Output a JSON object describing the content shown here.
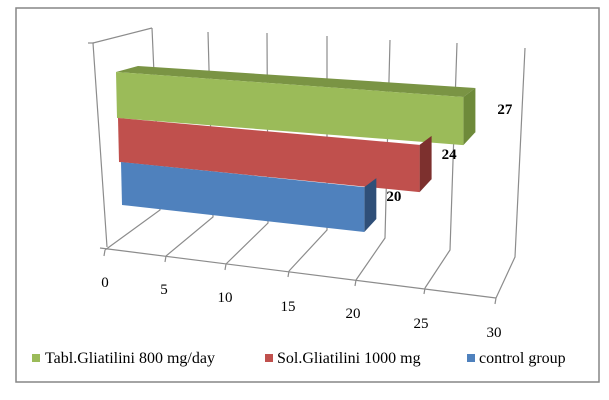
{
  "chart_data": {
    "type": "bar",
    "orientation": "horizontal-3d",
    "title": "",
    "xlabel": "",
    "ylabel": "",
    "xlim": [
      0,
      30
    ],
    "x_ticks": [
      "0",
      "5",
      "10",
      "15",
      "20",
      "25",
      "30"
    ],
    "grid": true,
    "legend_position": "bottom",
    "series": [
      {
        "name": "Tabl.Gliatilini 800 mg/day",
        "value": 27,
        "label": "27",
        "color": "#9BBB59",
        "side_color": "#6E8A3A",
        "top_color": "#7A9444"
      },
      {
        "name": "Sol.Gliatilini 1000 mg",
        "value": 24,
        "label": "24",
        "color": "#C0504D",
        "side_color": "#7D302E",
        "top_color": "#A03E3B"
      },
      {
        "name": "control group",
        "value": 20,
        "label": "20",
        "color": "#4F81BD",
        "side_color": "#2F4F78",
        "top_color": "#3D6699"
      }
    ]
  }
}
